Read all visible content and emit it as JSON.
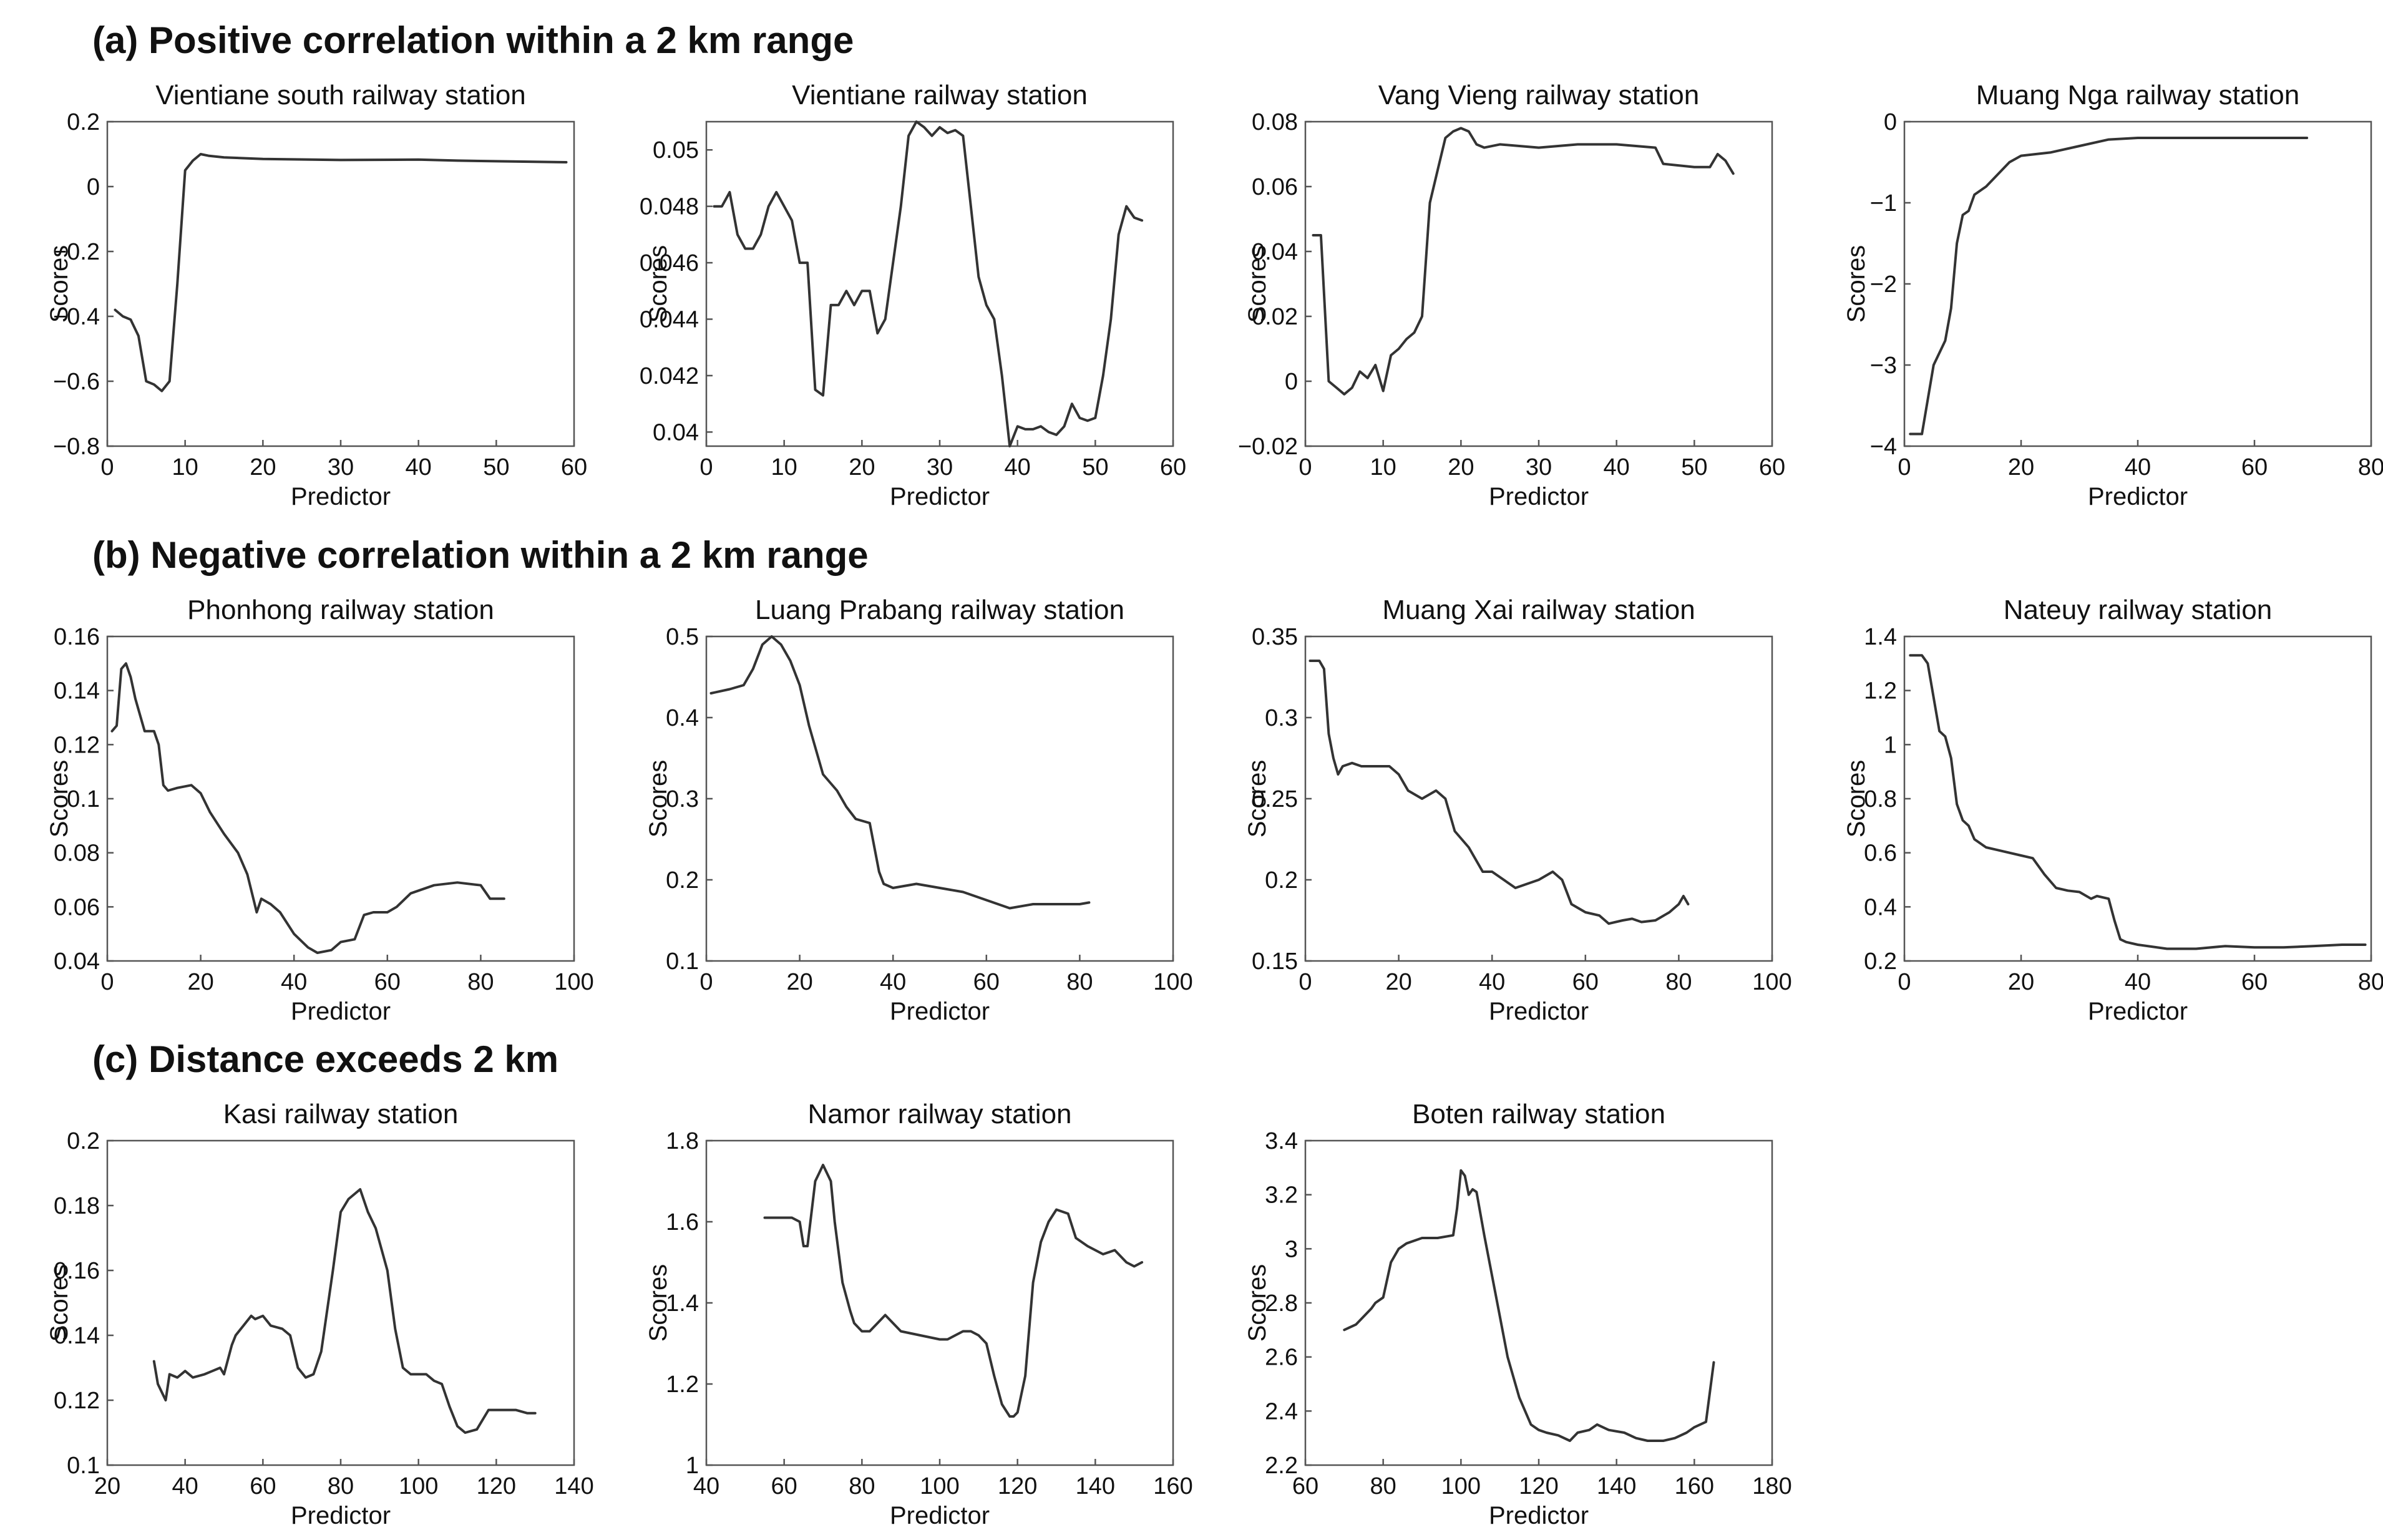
{
  "sections": [
    {
      "heading": "(a) Positive correlation within a 2 km range"
    },
    {
      "heading": "(b) Negative correlation within a 2 km range"
    },
    {
      "heading": "(c) Distance exceeds 2 km"
    }
  ],
  "chart_data": [
    {
      "type": "line",
      "title": "Vientiane south railway station",
      "xlabel": "Predictor",
      "ylabel": "Scores",
      "xlim": [
        0,
        60
      ],
      "ylim": [
        -0.8,
        0.2
      ],
      "xticks": [
        0,
        10,
        20,
        30,
        40,
        50,
        60
      ],
      "xtick_labels": [
        "0",
        "10",
        "20",
        "30",
        "40",
        "50",
        "60"
      ],
      "yticks": [
        -0.8,
        -0.6,
        -0.4,
        -0.2,
        0,
        0.2
      ],
      "ytick_labels": [
        "−0.8",
        "−0.6",
        "−0.4",
        "−0.2",
        "0",
        "0.2"
      ],
      "x": [
        1,
        2,
        3,
        4,
        5,
        6,
        7,
        8,
        9,
        10,
        11,
        12,
        13,
        15,
        20,
        30,
        40,
        45,
        50,
        59
      ],
      "y": [
        -0.38,
        -0.4,
        -0.41,
        -0.46,
        -0.6,
        -0.61,
        -0.63,
        -0.6,
        -0.3,
        0.05,
        0.08,
        0.1,
        0.095,
        0.09,
        0.085,
        0.082,
        0.083,
        0.08,
        0.078,
        0.075
      ]
    },
    {
      "type": "line",
      "title": "Vientiane railway station",
      "xlabel": "Predictor",
      "ylabel": "Scores",
      "xlim": [
        0,
        60
      ],
      "ylim": [
        0.0395,
        0.051
      ],
      "xticks": [
        0,
        10,
        20,
        30,
        40,
        50,
        60
      ],
      "xtick_labels": [
        "0",
        "10",
        "20",
        "30",
        "40",
        "50",
        "60"
      ],
      "yticks": [
        0.04,
        0.042,
        0.044,
        0.046,
        0.048,
        0.05
      ],
      "ytick_labels": [
        "0.04",
        "0.042",
        "0.044",
        "0.046",
        "0.048",
        "0.05"
      ],
      "x": [
        1,
        2,
        3,
        4,
        5,
        6,
        7,
        8,
        9,
        10,
        11,
        12,
        13,
        14,
        15,
        16,
        17,
        18,
        19,
        20,
        21,
        22,
        23,
        24,
        25,
        26,
        27,
        28,
        29,
        30,
        31,
        32,
        33,
        34,
        35,
        36,
        37,
        38,
        39,
        40,
        41,
        42,
        43,
        44,
        45,
        46,
        47,
        48,
        49,
        50,
        51,
        52,
        53,
        54,
        55,
        56
      ],
      "y": [
        0.048,
        0.048,
        0.0485,
        0.047,
        0.0465,
        0.0465,
        0.047,
        0.048,
        0.0485,
        0.048,
        0.0475,
        0.046,
        0.046,
        0.0415,
        0.0413,
        0.0445,
        0.0445,
        0.045,
        0.0445,
        0.045,
        0.045,
        0.0435,
        0.044,
        0.046,
        0.048,
        0.0505,
        0.051,
        0.0508,
        0.0505,
        0.0508,
        0.0506,
        0.0507,
        0.0505,
        0.048,
        0.0455,
        0.0445,
        0.044,
        0.042,
        0.0395,
        0.0402,
        0.0401,
        0.0401,
        0.0402,
        0.04,
        0.0399,
        0.0402,
        0.041,
        0.0405,
        0.0404,
        0.0405,
        0.042,
        0.044,
        0.047,
        0.048,
        0.0476,
        0.0475
      ]
    },
    {
      "type": "line",
      "title": "Vang Vieng railway station",
      "xlabel": "Predictor",
      "ylabel": "Scores",
      "xlim": [
        0,
        60
      ],
      "ylim": [
        -0.02,
        0.08
      ],
      "xticks": [
        0,
        10,
        20,
        30,
        40,
        50,
        60
      ],
      "xtick_labels": [
        "0",
        "10",
        "20",
        "30",
        "40",
        "50",
        "60"
      ],
      "yticks": [
        -0.02,
        0,
        0.02,
        0.04,
        0.06,
        0.08
      ],
      "ytick_labels": [
        "−0.02",
        "0",
        "0.02",
        "0.04",
        "0.06",
        "0.08"
      ],
      "x": [
        1,
        2,
        3,
        4,
        5,
        6,
        7,
        8,
        9,
        10,
        11,
        12,
        13,
        14,
        15,
        16,
        17,
        18,
        19,
        20,
        21,
        22,
        23,
        25,
        30,
        35,
        40,
        45,
        46,
        50,
        52,
        53,
        54,
        55
      ],
      "y": [
        0.045,
        0.045,
        0.0,
        -0.002,
        -0.004,
        -0.002,
        0.003,
        0.001,
        0.005,
        -0.003,
        0.008,
        0.01,
        0.013,
        0.015,
        0.02,
        0.055,
        0.065,
        0.075,
        0.077,
        0.078,
        0.077,
        0.073,
        0.072,
        0.073,
        0.072,
        0.073,
        0.073,
        0.072,
        0.067,
        0.066,
        0.066,
        0.07,
        0.068,
        0.064
      ]
    },
    {
      "type": "line",
      "title": "Muang Nga railway station",
      "xlabel": "Predictor",
      "ylabel": "Scores",
      "xlim": [
        0,
        80
      ],
      "ylim": [
        -4,
        0
      ],
      "xticks": [
        0,
        20,
        40,
        60,
        80
      ],
      "xtick_labels": [
        "0",
        "20",
        "40",
        "60",
        "80"
      ],
      "yticks": [
        -4,
        -3,
        -2,
        -1,
        0
      ],
      "ytick_labels": [
        "−4",
        "−3",
        "−2",
        "−1",
        "0"
      ],
      "x": [
        1,
        3,
        5,
        7,
        8,
        9,
        10,
        11,
        12,
        14,
        16,
        18,
        20,
        25,
        30,
        35,
        40,
        50,
        60,
        69
      ],
      "y": [
        -3.85,
        -3.85,
        -3.0,
        -2.7,
        -2.3,
        -1.5,
        -1.15,
        -1.1,
        -0.9,
        -0.8,
        -0.65,
        -0.5,
        -0.42,
        -0.38,
        -0.3,
        -0.22,
        -0.2,
        -0.2,
        -0.2,
        -0.2
      ]
    },
    {
      "type": "line",
      "title": "Phonhong railway station",
      "xlabel": "Predictor",
      "ylabel": "Scores",
      "xlim": [
        0,
        100
      ],
      "ylim": [
        0.04,
        0.16
      ],
      "xticks": [
        0,
        20,
        40,
        60,
        80,
        100
      ],
      "xtick_labels": [
        "0",
        "20",
        "40",
        "60",
        "80",
        "100"
      ],
      "yticks": [
        0.04,
        0.06,
        0.08,
        0.1,
        0.12,
        0.14,
        0.16
      ],
      "ytick_labels": [
        "0.04",
        "0.06",
        "0.08",
        "0.1",
        "0.12",
        "0.14",
        "0.16"
      ],
      "x": [
        1,
        2,
        3,
        4,
        5,
        6,
        8,
        10,
        11,
        12,
        13,
        15,
        18,
        20,
        22,
        25,
        28,
        30,
        32,
        33,
        35,
        37,
        40,
        43,
        45,
        48,
        50,
        53,
        55,
        57,
        60,
        62,
        65,
        70,
        75,
        80,
        82,
        85
      ],
      "y": [
        0.125,
        0.127,
        0.148,
        0.15,
        0.145,
        0.137,
        0.125,
        0.125,
        0.12,
        0.105,
        0.103,
        0.104,
        0.105,
        0.102,
        0.095,
        0.087,
        0.08,
        0.072,
        0.058,
        0.063,
        0.061,
        0.058,
        0.05,
        0.045,
        0.043,
        0.044,
        0.047,
        0.048,
        0.057,
        0.058,
        0.058,
        0.06,
        0.065,
        0.068,
        0.069,
        0.068,
        0.063,
        0.063
      ]
    },
    {
      "type": "line",
      "title": "Luang Prabang railway station",
      "xlabel": "Predictor",
      "ylabel": "Scores",
      "xlim": [
        0,
        100
      ],
      "ylim": [
        0.1,
        0.5
      ],
      "xticks": [
        0,
        20,
        40,
        60,
        80,
        100
      ],
      "xtick_labels": [
        "0",
        "20",
        "40",
        "60",
        "80",
        "100"
      ],
      "yticks": [
        0.1,
        0.2,
        0.3,
        0.4,
        0.5
      ],
      "ytick_labels": [
        "0.1",
        "0.2",
        "0.3",
        "0.4",
        "0.5"
      ],
      "x": [
        1,
        5,
        8,
        10,
        12,
        14,
        16,
        18,
        20,
        22,
        25,
        28,
        30,
        32,
        35,
        37,
        38,
        40,
        45,
        50,
        55,
        60,
        65,
        70,
        75,
        80,
        82
      ],
      "y": [
        0.43,
        0.435,
        0.44,
        0.46,
        0.49,
        0.505,
        0.49,
        0.47,
        0.44,
        0.39,
        0.33,
        0.31,
        0.29,
        0.275,
        0.27,
        0.21,
        0.195,
        0.19,
        0.195,
        0.19,
        0.185,
        0.175,
        0.165,
        0.17,
        0.17,
        0.17,
        0.172
      ]
    },
    {
      "type": "line",
      "title": "Muang Xai railway station",
      "xlabel": "Predictor",
      "ylabel": "Scores",
      "xlim": [
        0,
        100
      ],
      "ylim": [
        0.15,
        0.35
      ],
      "xticks": [
        0,
        20,
        40,
        60,
        80,
        100
      ],
      "xtick_labels": [
        "0",
        "20",
        "40",
        "60",
        "80",
        "100"
      ],
      "yticks": [
        0.15,
        0.2,
        0.25,
        0.3,
        0.35
      ],
      "ytick_labels": [
        "0.15",
        "0.2",
        "0.25",
        "0.3",
        "0.35"
      ],
      "x": [
        1,
        3,
        4,
        5,
        6,
        7,
        8,
        10,
        12,
        15,
        18,
        20,
        22,
        25,
        28,
        30,
        32,
        35,
        38,
        40,
        45,
        50,
        53,
        55,
        57,
        60,
        63,
        65,
        68,
        70,
        72,
        75,
        78,
        80,
        81,
        82
      ],
      "y": [
        0.335,
        0.335,
        0.33,
        0.29,
        0.275,
        0.265,
        0.27,
        0.272,
        0.27,
        0.27,
        0.27,
        0.265,
        0.255,
        0.25,
        0.255,
        0.25,
        0.23,
        0.22,
        0.205,
        0.205,
        0.195,
        0.2,
        0.205,
        0.2,
        0.185,
        0.18,
        0.178,
        0.173,
        0.175,
        0.176,
        0.174,
        0.175,
        0.18,
        0.185,
        0.19,
        0.185
      ]
    },
    {
      "type": "line",
      "title": "Nateuy railway station",
      "xlabel": "Predictor",
      "ylabel": "Scores",
      "xlim": [
        0,
        80
      ],
      "ylim": [
        0.2,
        1.4
      ],
      "xticks": [
        0,
        20,
        40,
        60,
        80
      ],
      "xtick_labels": [
        "0",
        "20",
        "40",
        "60",
        "80"
      ],
      "yticks": [
        0.2,
        0.4,
        0.6,
        0.8,
        1,
        1.2,
        1.4
      ],
      "ytick_labels": [
        "0.2",
        "0.4",
        "0.6",
        "0.8",
        "1",
        "1.2",
        "1.4"
      ],
      "x": [
        1,
        3,
        4,
        6,
        7,
        8,
        9,
        10,
        11,
        12,
        14,
        16,
        20,
        22,
        24,
        26,
        28,
        30,
        32,
        33,
        35,
        36,
        37,
        38,
        40,
        45,
        50,
        55,
        60,
        65,
        70,
        75,
        79
      ],
      "y": [
        1.33,
        1.33,
        1.3,
        1.05,
        1.03,
        0.95,
        0.78,
        0.72,
        0.7,
        0.65,
        0.62,
        0.61,
        0.59,
        0.58,
        0.52,
        0.47,
        0.46,
        0.455,
        0.43,
        0.44,
        0.43,
        0.35,
        0.28,
        0.27,
        0.26,
        0.245,
        0.245,
        0.255,
        0.25,
        0.25,
        0.255,
        0.26,
        0.26
      ]
    },
    {
      "type": "line",
      "title": "Kasi railway station",
      "xlabel": "Predictor",
      "ylabel": "Scores",
      "xlim": [
        20,
        140
      ],
      "ylim": [
        0.1,
        0.2
      ],
      "xticks": [
        20,
        40,
        60,
        80,
        100,
        120,
        140
      ],
      "xtick_labels": [
        "20",
        "40",
        "60",
        "80",
        "100",
        "120",
        "140"
      ],
      "yticks": [
        0.1,
        0.12,
        0.14,
        0.16,
        0.18,
        0.2
      ],
      "ytick_labels": [
        "0.1",
        "0.12",
        "0.14",
        "0.16",
        "0.18",
        "0.2"
      ],
      "x": [
        32,
        33,
        35,
        36,
        38,
        40,
        42,
        45,
        47,
        49,
        50,
        52,
        53,
        55,
        57,
        58,
        60,
        62,
        65,
        67,
        69,
        71,
        73,
        75,
        78,
        80,
        82,
        85,
        87,
        89,
        92,
        94,
        96,
        98,
        100,
        102,
        104,
        106,
        108,
        110,
        112,
        115,
        118,
        120,
        122,
        125,
        128,
        130
      ],
      "y": [
        0.132,
        0.125,
        0.12,
        0.128,
        0.127,
        0.129,
        0.127,
        0.128,
        0.129,
        0.13,
        0.128,
        0.137,
        0.14,
        0.143,
        0.146,
        0.145,
        0.146,
        0.143,
        0.142,
        0.14,
        0.13,
        0.127,
        0.128,
        0.135,
        0.16,
        0.178,
        0.182,
        0.185,
        0.178,
        0.173,
        0.16,
        0.142,
        0.13,
        0.128,
        0.128,
        0.128,
        0.126,
        0.125,
        0.118,
        0.112,
        0.11,
        0.111,
        0.117,
        0.117,
        0.117,
        0.117,
        0.116,
        0.116
      ]
    },
    {
      "type": "line",
      "title": "Namor railway station",
      "xlabel": "Predictor",
      "ylabel": "Scores",
      "xlim": [
        40,
        160
      ],
      "ylim": [
        1,
        1.8
      ],
      "xticks": [
        40,
        60,
        80,
        100,
        120,
        140,
        160
      ],
      "xtick_labels": [
        "40",
        "60",
        "80",
        "100",
        "120",
        "140",
        "160"
      ],
      "yticks": [
        1,
        1.2,
        1.4,
        1.6,
        1.8
      ],
      "ytick_labels": [
        "1",
        "1.2",
        "1.4",
        "1.6",
        "1.8"
      ],
      "x": [
        55,
        58,
        62,
        64,
        65,
        66,
        68,
        69,
        70,
        72,
        73,
        75,
        77,
        78,
        80,
        82,
        84,
        86,
        90,
        95,
        100,
        102,
        104,
        106,
        108,
        110,
        112,
        114,
        116,
        118,
        119,
        120,
        122,
        124,
        126,
        128,
        130,
        133,
        135,
        138,
        142,
        145,
        148,
        150,
        152
      ],
      "y": [
        1.61,
        1.61,
        1.61,
        1.6,
        1.54,
        1.54,
        1.7,
        1.72,
        1.74,
        1.7,
        1.6,
        1.45,
        1.38,
        1.35,
        1.33,
        1.33,
        1.35,
        1.37,
        1.33,
        1.32,
        1.31,
        1.31,
        1.32,
        1.33,
        1.33,
        1.32,
        1.3,
        1.22,
        1.15,
        1.12,
        1.12,
        1.13,
        1.22,
        1.45,
        1.55,
        1.6,
        1.63,
        1.62,
        1.56,
        1.54,
        1.52,
        1.53,
        1.5,
        1.49,
        1.5
      ]
    },
    {
      "type": "line",
      "title": "Boten railway station",
      "xlabel": "Predictor",
      "ylabel": "Scores",
      "xlim": [
        60,
        180
      ],
      "ylim": [
        2.2,
        3.4
      ],
      "xticks": [
        60,
        80,
        100,
        120,
        140,
        160,
        180
      ],
      "xtick_labels": [
        "60",
        "80",
        "100",
        "120",
        "140",
        "160",
        "180"
      ],
      "yticks": [
        2.2,
        2.4,
        2.6,
        2.8,
        3,
        3.2,
        3.4
      ],
      "ytick_labels": [
        "2.2",
        "2.4",
        "2.6",
        "2.8",
        "3",
        "3.2",
        "3.4"
      ],
      "x": [
        70,
        73,
        75,
        77,
        78,
        80,
        82,
        84,
        86,
        90,
        94,
        98,
        99,
        100,
        101,
        102,
        103,
        104,
        106,
        108,
        110,
        112,
        115,
        118,
        120,
        122,
        125,
        128,
        130,
        133,
        135,
        138,
        142,
        145,
        148,
        152,
        155,
        158,
        160,
        163,
        165
      ],
      "y": [
        2.7,
        2.72,
        2.75,
        2.78,
        2.8,
        2.82,
        2.95,
        3.0,
        3.02,
        3.04,
        3.04,
        3.05,
        3.15,
        3.29,
        3.27,
        3.2,
        3.22,
        3.21,
        3.05,
        2.9,
        2.75,
        2.6,
        2.45,
        2.35,
        2.33,
        2.32,
        2.31,
        2.29,
        2.32,
        2.33,
        2.35,
        2.33,
        2.32,
        2.3,
        2.29,
        2.29,
        2.3,
        2.32,
        2.34,
        2.36,
        2.58
      ]
    }
  ]
}
